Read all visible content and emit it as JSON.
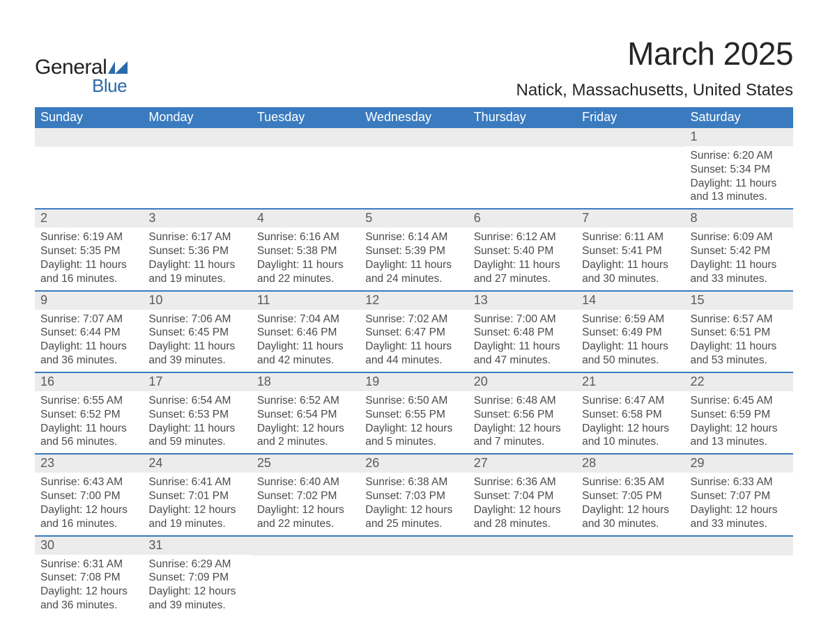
{
  "brand": {
    "name_part1": "General",
    "name_part2": "Blue",
    "color_dark": "#222222",
    "color_blue": "#2b6aa8"
  },
  "title": "March 2025",
  "location": "Natick, Massachusetts, United States",
  "colors": {
    "header_bg": "#3a7bbf",
    "header_text": "#ffffff",
    "daynum_bg": "#ececec",
    "body_text": "#4a4a4a",
    "week_border": "#3a7bbf",
    "page_bg": "#ffffff"
  },
  "typography": {
    "title_fontsize": 46,
    "location_fontsize": 24,
    "weekday_fontsize": 18,
    "daynum_fontsize": 18,
    "details_fontsize": 15.5,
    "font_family": "Arial"
  },
  "weekdays": [
    "Sunday",
    "Monday",
    "Tuesday",
    "Wednesday",
    "Thursday",
    "Friday",
    "Saturday"
  ],
  "weeks": [
    [
      null,
      null,
      null,
      null,
      null,
      null,
      {
        "n": "1",
        "sunrise": "Sunrise: 6:20 AM",
        "sunset": "Sunset: 5:34 PM",
        "daylight": "Daylight: 11 hours and 13 minutes."
      }
    ],
    [
      {
        "n": "2",
        "sunrise": "Sunrise: 6:19 AM",
        "sunset": "Sunset: 5:35 PM",
        "daylight": "Daylight: 11 hours and 16 minutes."
      },
      {
        "n": "3",
        "sunrise": "Sunrise: 6:17 AM",
        "sunset": "Sunset: 5:36 PM",
        "daylight": "Daylight: 11 hours and 19 minutes."
      },
      {
        "n": "4",
        "sunrise": "Sunrise: 6:16 AM",
        "sunset": "Sunset: 5:38 PM",
        "daylight": "Daylight: 11 hours and 22 minutes."
      },
      {
        "n": "5",
        "sunrise": "Sunrise: 6:14 AM",
        "sunset": "Sunset: 5:39 PM",
        "daylight": "Daylight: 11 hours and 24 minutes."
      },
      {
        "n": "6",
        "sunrise": "Sunrise: 6:12 AM",
        "sunset": "Sunset: 5:40 PM",
        "daylight": "Daylight: 11 hours and 27 minutes."
      },
      {
        "n": "7",
        "sunrise": "Sunrise: 6:11 AM",
        "sunset": "Sunset: 5:41 PM",
        "daylight": "Daylight: 11 hours and 30 minutes."
      },
      {
        "n": "8",
        "sunrise": "Sunrise: 6:09 AM",
        "sunset": "Sunset: 5:42 PM",
        "daylight": "Daylight: 11 hours and 33 minutes."
      }
    ],
    [
      {
        "n": "9",
        "sunrise": "Sunrise: 7:07 AM",
        "sunset": "Sunset: 6:44 PM",
        "daylight": "Daylight: 11 hours and 36 minutes."
      },
      {
        "n": "10",
        "sunrise": "Sunrise: 7:06 AM",
        "sunset": "Sunset: 6:45 PM",
        "daylight": "Daylight: 11 hours and 39 minutes."
      },
      {
        "n": "11",
        "sunrise": "Sunrise: 7:04 AM",
        "sunset": "Sunset: 6:46 PM",
        "daylight": "Daylight: 11 hours and 42 minutes."
      },
      {
        "n": "12",
        "sunrise": "Sunrise: 7:02 AM",
        "sunset": "Sunset: 6:47 PM",
        "daylight": "Daylight: 11 hours and 44 minutes."
      },
      {
        "n": "13",
        "sunrise": "Sunrise: 7:00 AM",
        "sunset": "Sunset: 6:48 PM",
        "daylight": "Daylight: 11 hours and 47 minutes."
      },
      {
        "n": "14",
        "sunrise": "Sunrise: 6:59 AM",
        "sunset": "Sunset: 6:49 PM",
        "daylight": "Daylight: 11 hours and 50 minutes."
      },
      {
        "n": "15",
        "sunrise": "Sunrise: 6:57 AM",
        "sunset": "Sunset: 6:51 PM",
        "daylight": "Daylight: 11 hours and 53 minutes."
      }
    ],
    [
      {
        "n": "16",
        "sunrise": "Sunrise: 6:55 AM",
        "sunset": "Sunset: 6:52 PM",
        "daylight": "Daylight: 11 hours and 56 minutes."
      },
      {
        "n": "17",
        "sunrise": "Sunrise: 6:54 AM",
        "sunset": "Sunset: 6:53 PM",
        "daylight": "Daylight: 11 hours and 59 minutes."
      },
      {
        "n": "18",
        "sunrise": "Sunrise: 6:52 AM",
        "sunset": "Sunset: 6:54 PM",
        "daylight": "Daylight: 12 hours and 2 minutes."
      },
      {
        "n": "19",
        "sunrise": "Sunrise: 6:50 AM",
        "sunset": "Sunset: 6:55 PM",
        "daylight": "Daylight: 12 hours and 5 minutes."
      },
      {
        "n": "20",
        "sunrise": "Sunrise: 6:48 AM",
        "sunset": "Sunset: 6:56 PM",
        "daylight": "Daylight: 12 hours and 7 minutes."
      },
      {
        "n": "21",
        "sunrise": "Sunrise: 6:47 AM",
        "sunset": "Sunset: 6:58 PM",
        "daylight": "Daylight: 12 hours and 10 minutes."
      },
      {
        "n": "22",
        "sunrise": "Sunrise: 6:45 AM",
        "sunset": "Sunset: 6:59 PM",
        "daylight": "Daylight: 12 hours and 13 minutes."
      }
    ],
    [
      {
        "n": "23",
        "sunrise": "Sunrise: 6:43 AM",
        "sunset": "Sunset: 7:00 PM",
        "daylight": "Daylight: 12 hours and 16 minutes."
      },
      {
        "n": "24",
        "sunrise": "Sunrise: 6:41 AM",
        "sunset": "Sunset: 7:01 PM",
        "daylight": "Daylight: 12 hours and 19 minutes."
      },
      {
        "n": "25",
        "sunrise": "Sunrise: 6:40 AM",
        "sunset": "Sunset: 7:02 PM",
        "daylight": "Daylight: 12 hours and 22 minutes."
      },
      {
        "n": "26",
        "sunrise": "Sunrise: 6:38 AM",
        "sunset": "Sunset: 7:03 PM",
        "daylight": "Daylight: 12 hours and 25 minutes."
      },
      {
        "n": "27",
        "sunrise": "Sunrise: 6:36 AM",
        "sunset": "Sunset: 7:04 PM",
        "daylight": "Daylight: 12 hours and 28 minutes."
      },
      {
        "n": "28",
        "sunrise": "Sunrise: 6:35 AM",
        "sunset": "Sunset: 7:05 PM",
        "daylight": "Daylight: 12 hours and 30 minutes."
      },
      {
        "n": "29",
        "sunrise": "Sunrise: 6:33 AM",
        "sunset": "Sunset: 7:07 PM",
        "daylight": "Daylight: 12 hours and 33 minutes."
      }
    ],
    [
      {
        "n": "30",
        "sunrise": "Sunrise: 6:31 AM",
        "sunset": "Sunset: 7:08 PM",
        "daylight": "Daylight: 12 hours and 36 minutes."
      },
      {
        "n": "31",
        "sunrise": "Sunrise: 6:29 AM",
        "sunset": "Sunset: 7:09 PM",
        "daylight": "Daylight: 12 hours and 39 minutes."
      },
      null,
      null,
      null,
      null,
      null
    ]
  ]
}
